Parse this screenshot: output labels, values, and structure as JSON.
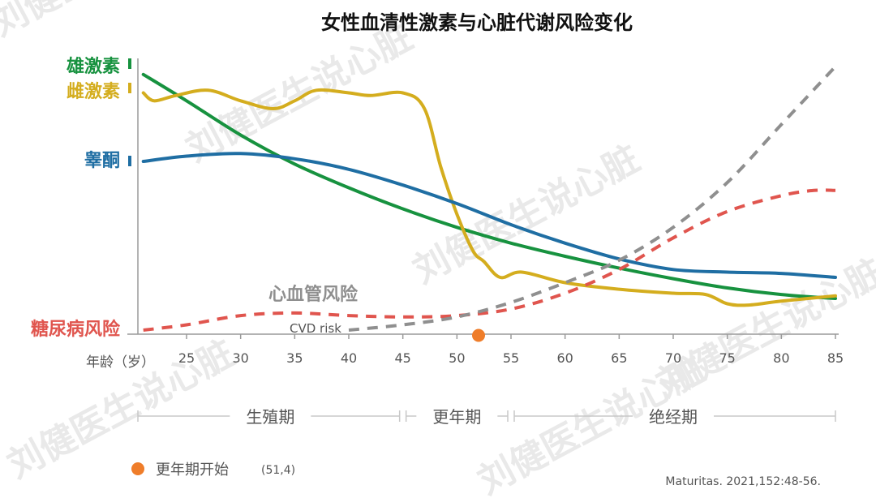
{
  "chart_data": {
    "type": "line",
    "title": "女性血清性激素与心脏代谢风险变化",
    "xlabel": "年龄（岁）",
    "x_ticks": [
      25,
      30,
      35,
      40,
      45,
      50,
      55,
      60,
      65,
      70,
      75,
      80,
      85
    ],
    "xlim": [
      20.5,
      85
    ],
    "ylim": [
      0,
      100
    ],
    "series": [
      {
        "name": "雄激素",
        "color": "#17923f",
        "style": "solid",
        "x": [
          21,
          25,
          30,
          35,
          40,
          45,
          50,
          55,
          60,
          65,
          70,
          75,
          80,
          85
        ],
        "y": [
          97,
          87,
          74,
          63,
          54,
          46,
          39,
          33,
          28,
          23.5,
          19.5,
          16,
          13.5,
          12
        ]
      },
      {
        "name": "雌激素",
        "color": "#d4ad1e",
        "style": "solid",
        "x": [
          21,
          22,
          24,
          27,
          30,
          33,
          35,
          37,
          40,
          42,
          45,
          47,
          48.5,
          50,
          51.5,
          52.5,
          54,
          56,
          60,
          65,
          70,
          73,
          75,
          77,
          80,
          85
        ],
        "y": [
          90,
          87,
          89,
          91,
          87,
          84,
          87,
          91,
          90,
          89,
          90,
          84,
          62,
          44,
          30,
          26,
          20,
          22,
          18,
          15.5,
          14,
          13.5,
          10,
          9.5,
          11,
          13
        ]
      },
      {
        "name": "睾酮",
        "color": "#1f6ea3",
        "style": "solid",
        "x": [
          21,
          25,
          30,
          35,
          40,
          45,
          50,
          55,
          60,
          65,
          70,
          75,
          80,
          85
        ],
        "y": [
          64,
          66,
          67,
          65,
          61,
          55,
          48,
          40,
          33,
          27,
          23,
          22,
          21.5,
          20
        ]
      },
      {
        "name": "糖尿病风险",
        "color": "#e0554e",
        "style": "dashed",
        "x": [
          21,
          25,
          30,
          35,
          40,
          45,
          50,
          55,
          60,
          65,
          70,
          75,
          80,
          83,
          85
        ],
        "y": [
          0,
          2,
          5.5,
          6.5,
          5.5,
          5,
          5.5,
          8,
          14,
          23,
          35,
          45,
          51,
          53,
          53
        ]
      },
      {
        "name": "心血管风险",
        "color": "#8f8f8f",
        "style": "dashed",
        "x": [
          40,
          45,
          50,
          55,
          60,
          65,
          70,
          75,
          80,
          85
        ],
        "y": [
          0,
          2,
          5,
          10.5,
          18,
          26.5,
          39,
          56,
          78,
          100
        ]
      }
    ],
    "series_labels": {
      "androgen": "雄激素",
      "estrogen": "雌激素",
      "testosterone": "睾酮",
      "diabetes": "糖尿病风险"
    },
    "annotations": {
      "cvd_cn": "心血管风险",
      "cvd_en": "CVD risk"
    },
    "marker": {
      "x": 52,
      "y": -2,
      "color": "#ef7d2a"
    },
    "phases": [
      {
        "name": "生殖期",
        "from": 20.5,
        "to": 45
      },
      {
        "name": "更年期",
        "from": 45,
        "to": 55
      },
      {
        "name": "绝经期",
        "from": 55,
        "to": 85
      }
    ],
    "legend": {
      "label": "更年期开始",
      "value": "(51,4)"
    },
    "source": "Maturitas. 2021,152:48-56.",
    "watermark": "刘健医生说心脏"
  }
}
